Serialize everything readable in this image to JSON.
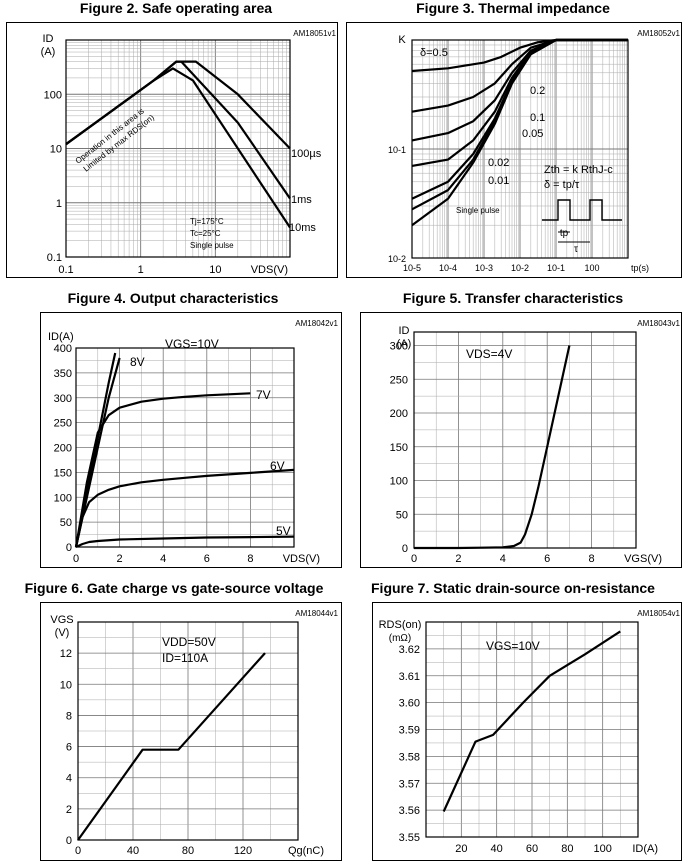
{
  "chart_data": [
    {
      "id": "fig2",
      "type": "line",
      "title": "Figure 2. Safe operating area",
      "code": "AM18051v1",
      "ylabel": "ID",
      "yunit": "(A)",
      "xlabel": "VDS(V)",
      "x_scale": "log",
      "y_scale": "log",
      "xlim": [
        0.1,
        100
      ],
      "ylim": [
        0.1,
        1000
      ],
      "x_ticks": [
        "0.1",
        "1",
        "10"
      ],
      "y_ticks": [
        "0.1",
        "1",
        "10",
        "100"
      ],
      "grid": true,
      "series": [
        {
          "name": "100µs",
          "x": [
            0.1,
            1.5,
            3.0,
            5.5,
            20,
            100
          ],
          "y": [
            12,
            180,
            400,
            400,
            100,
            10
          ]
        },
        {
          "name": "1ms",
          "x": [
            0.1,
            1.5,
            3.0,
            3.5,
            20,
            100
          ],
          "y": [
            12,
            180,
            400,
            400,
            30,
            1.2
          ]
        },
        {
          "name": "10ms",
          "x": [
            0.1,
            1.5,
            2.7,
            5.0,
            100
          ],
          "y": [
            12,
            180,
            300,
            180,
            0.35
          ]
        }
      ],
      "annotations": [
        "Operation in this area is",
        "Limited by max RDS(on)",
        "Tj=175°C",
        "Tc=25°C",
        "Single pulse"
      ]
    },
    {
      "id": "fig3",
      "type": "line",
      "title": "Figure 3. Thermal impedance",
      "code": "AM18052v1",
      "ylabel": "K",
      "xlabel": "tp(s)",
      "x_scale": "log",
      "y_scale": "log",
      "xlim": [
        1e-05,
        10
      ],
      "ylim": [
        0.01,
        1
      ],
      "x_ticks": [
        "10-5",
        "10-4",
        "10-3",
        "10-2",
        "10-1",
        "100",
        "tp(s)"
      ],
      "y_ticks": [
        "10-2",
        "10-1"
      ],
      "grid": true,
      "series": [
        {
          "name": "δ=0.5",
          "x": [
            1e-05,
            0.0001,
            0.001,
            0.003,
            0.01,
            0.03,
            0.1,
            10
          ],
          "y": [
            0.52,
            0.55,
            0.62,
            0.7,
            0.85,
            0.95,
            1,
            1
          ]
        },
        {
          "name": "0.2",
          "x": [
            1e-05,
            0.0001,
            0.0005,
            0.002,
            0.006,
            0.02,
            0.1,
            10
          ],
          "y": [
            0.22,
            0.25,
            0.3,
            0.4,
            0.6,
            0.85,
            1,
            1
          ]
        },
        {
          "name": "0.1",
          "x": [
            1e-05,
            0.0001,
            0.0005,
            0.002,
            0.006,
            0.02,
            0.1,
            10
          ],
          "y": [
            0.12,
            0.14,
            0.18,
            0.28,
            0.5,
            0.8,
            1,
            1
          ]
        },
        {
          "name": "0.05",
          "x": [
            1e-05,
            0.0001,
            0.0005,
            0.002,
            0.006,
            0.02,
            0.1,
            10
          ],
          "y": [
            0.07,
            0.08,
            0.12,
            0.22,
            0.45,
            0.78,
            1,
            1
          ]
        },
        {
          "name": "0.02",
          "x": [
            1e-05,
            0.0001,
            0.0005,
            0.002,
            0.006,
            0.02,
            0.1,
            10
          ],
          "y": [
            0.035,
            0.05,
            0.09,
            0.19,
            0.42,
            0.76,
            1,
            1
          ]
        },
        {
          "name": "0.01",
          "x": [
            1e-05,
            0.0001,
            0.0005,
            0.002,
            0.006,
            0.02,
            0.1,
            10
          ],
          "y": [
            0.028,
            0.042,
            0.08,
            0.18,
            0.41,
            0.75,
            1,
            1
          ]
        },
        {
          "name": "Single pulse",
          "x": [
            1e-05,
            0.0001,
            0.0005,
            0.002,
            0.006,
            0.02,
            0.1,
            10
          ],
          "y": [
            0.02,
            0.035,
            0.075,
            0.17,
            0.4,
            0.74,
            1,
            1
          ]
        }
      ],
      "annotations": [
        "Zth = k RthJ-c",
        "δ = tp/τ",
        "tp",
        "τ"
      ]
    },
    {
      "id": "fig4",
      "type": "line",
      "title": "Figure 4. Output characteristics",
      "code": "AM18042v1",
      "ylabel": "ID(A)",
      "xlabel": "VDS(V)",
      "xlim": [
        0,
        10
      ],
      "ylim": [
        0,
        400
      ],
      "x_ticks": [
        "0",
        "2",
        "4",
        "6",
        "8"
      ],
      "y_ticks": [
        "0",
        "50",
        "100",
        "150",
        "200",
        "250",
        "300",
        "350",
        "400"
      ],
      "grid": true,
      "series": [
        {
          "name": "VGS=10V",
          "x": [
            0,
            0.5,
            1,
            1.5,
            1.8
          ],
          "y": [
            0,
            110,
            220,
            330,
            390
          ]
        },
        {
          "name": "8V",
          "x": [
            0,
            0.5,
            1,
            1.5,
            2.0
          ],
          "y": [
            0,
            100,
            200,
            300,
            380
          ]
        },
        {
          "name": "7V",
          "x": [
            0,
            0.5,
            1,
            1.5,
            2,
            3,
            4,
            5,
            6,
            7,
            8
          ],
          "y": [
            0,
            130,
            230,
            265,
            280,
            292,
            298,
            302,
            305,
            307,
            309
          ]
        },
        {
          "name": "6V",
          "x": [
            0,
            0.3,
            0.6,
            1,
            1.5,
            2,
            3,
            4,
            5,
            6,
            7,
            8,
            9,
            10
          ],
          "y": [
            0,
            60,
            90,
            105,
            115,
            122,
            130,
            135,
            139,
            143,
            146,
            149,
            152,
            155
          ]
        },
        {
          "name": "5V",
          "x": [
            0,
            0.3,
            0.6,
            1,
            2,
            4,
            6,
            8,
            10
          ],
          "y": [
            0,
            6,
            10,
            12,
            15,
            17,
            19,
            20,
            21
          ]
        }
      ],
      "annotations": [
        "VGS=10V",
        "8V",
        "7V",
        "6V",
        "5V"
      ]
    },
    {
      "id": "fig5",
      "type": "line",
      "title": "Figure 5. Transfer characteristics",
      "code": "AM18043v1",
      "ylabel": "ID",
      "yunit": "(A)",
      "xlabel": "VGS(V)",
      "xlim": [
        0,
        10
      ],
      "ylim": [
        0,
        320
      ],
      "x_ticks": [
        "0",
        "2",
        "4",
        "6",
        "8"
      ],
      "y_ticks": [
        "0",
        "50",
        "100",
        "150",
        "200",
        "250",
        "300"
      ],
      "grid": true,
      "series": [
        {
          "name": "VDS=4V",
          "x": [
            0,
            1,
            2,
            3,
            4,
            4.5,
            4.8,
            5.0,
            5.3,
            5.6,
            6,
            6.5,
            7
          ],
          "y": [
            0,
            0,
            0,
            0.5,
            1,
            3,
            8,
            20,
            50,
            90,
            150,
            225,
            300
          ]
        }
      ],
      "annotations": [
        "VDS=4V"
      ]
    },
    {
      "id": "fig6",
      "type": "line",
      "title": "Figure 6. Gate charge vs gate-source voltage",
      "code": "AM18044v1",
      "ylabel": "VGS",
      "yunit": "(V)",
      "xlabel": "Qg(nC)",
      "xlim": [
        0,
        160
      ],
      "ylim": [
        0,
        14
      ],
      "x_ticks": [
        "0",
        "40",
        "80",
        "120"
      ],
      "y_ticks": [
        "0",
        "2",
        "4",
        "6",
        "8",
        "10",
        "12"
      ],
      "grid": true,
      "series": [
        {
          "name": "VDD=50V ID=110A",
          "x": [
            0,
            47,
            73,
            136
          ],
          "y": [
            0,
            5.8,
            5.8,
            12
          ]
        }
      ],
      "annotations": [
        "VDD=50V",
        "ID=110A"
      ]
    },
    {
      "id": "fig7",
      "type": "line",
      "title": "Figure 7. Static drain-source on-resistance",
      "code": "AM18054v1",
      "ylabel": "RDS(on)",
      "yunit": "(mΩ)",
      "xlabel": "ID(A)",
      "xlim": [
        0,
        120
      ],
      "ylim": [
        3.55,
        3.63
      ],
      "x_ticks": [
        "20",
        "40",
        "60",
        "80",
        "100"
      ],
      "y_ticks": [
        "3.55",
        "3.56",
        "3.57",
        "3.58",
        "3.59",
        "3.60",
        "3.61",
        "3.62"
      ],
      "grid": true,
      "series": [
        {
          "name": "VGS=10V",
          "x": [
            10,
            28,
            38,
            55,
            70,
            90,
            110
          ],
          "y": [
            3.5595,
            3.5855,
            3.588,
            3.6,
            3.61,
            3.618,
            3.6265
          ]
        }
      ],
      "annotations": [
        "VGS=10V"
      ]
    }
  ]
}
